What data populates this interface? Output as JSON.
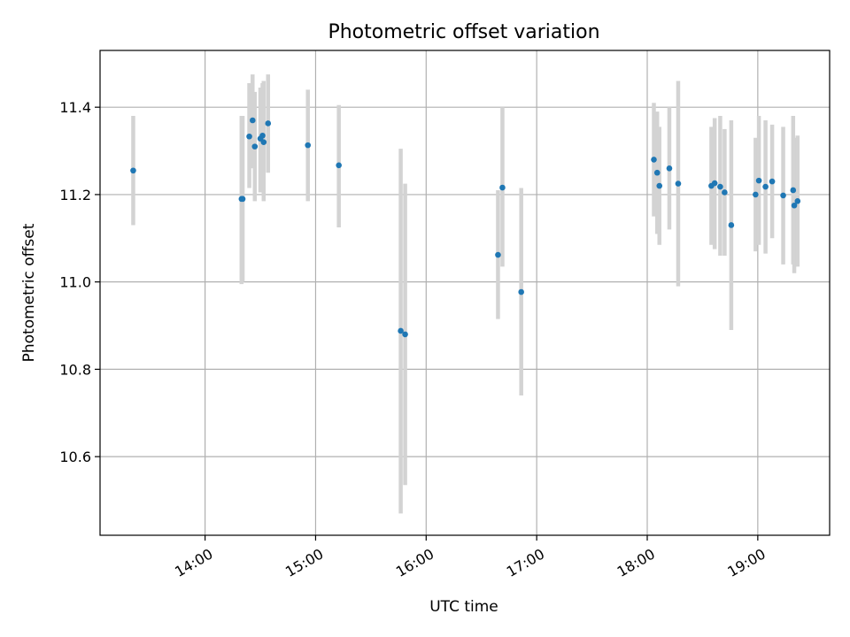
{
  "chart_data": {
    "type": "scatter",
    "title": "Photometric offset variation",
    "xlabel": "UTC time",
    "ylabel": "Photometric offset",
    "x_unit": "hours UTC",
    "xlim": [
      13.05,
      19.65
    ],
    "ylim": [
      10.42,
      11.53
    ],
    "x_ticks": [
      {
        "value": 14,
        "label": "14:00"
      },
      {
        "value": 15,
        "label": "15:00"
      },
      {
        "value": 16,
        "label": "16:00"
      },
      {
        "value": 17,
        "label": "17:00"
      },
      {
        "value": 18,
        "label": "18:00"
      },
      {
        "value": 19,
        "label": "19:00"
      }
    ],
    "y_ticks": [
      {
        "value": 10.6,
        "label": "10.6"
      },
      {
        "value": 10.8,
        "label": "10.8"
      },
      {
        "value": 11.0,
        "label": "11.0"
      },
      {
        "value": 11.2,
        "label": "11.2"
      },
      {
        "value": 11.4,
        "label": "11.4"
      }
    ],
    "grid": true,
    "marker_color": "#1f77b4",
    "errorbar_color": "#d3d3d3",
    "points": [
      {
        "x": 13.35,
        "y": 11.255,
        "lo": 11.13,
        "hi": 11.38
      },
      {
        "x": 14.33,
        "y": 11.19,
        "lo": 10.995,
        "hi": 11.38
      },
      {
        "x": 14.34,
        "y": 11.19,
        "lo": 11.0,
        "hi": 11.38
      },
      {
        "x": 14.4,
        "y": 11.333,
        "lo": 11.215,
        "hi": 11.455
      },
      {
        "x": 14.43,
        "y": 11.37,
        "lo": 11.26,
        "hi": 11.475
      },
      {
        "x": 14.45,
        "y": 11.31,
        "lo": 11.185,
        "hi": 11.435
      },
      {
        "x": 14.5,
        "y": 11.328,
        "lo": 11.205,
        "hi": 11.445
      },
      {
        "x": 14.52,
        "y": 11.335,
        "lo": 11.22,
        "hi": 11.455
      },
      {
        "x": 14.53,
        "y": 11.32,
        "lo": 11.185,
        "hi": 11.46
      },
      {
        "x": 14.57,
        "y": 11.363,
        "lo": 11.25,
        "hi": 11.475
      },
      {
        "x": 14.93,
        "y": 11.313,
        "lo": 11.185,
        "hi": 11.44
      },
      {
        "x": 15.21,
        "y": 11.267,
        "lo": 11.125,
        "hi": 11.405
      },
      {
        "x": 15.77,
        "y": 10.888,
        "lo": 10.47,
        "hi": 11.305
      },
      {
        "x": 15.81,
        "y": 10.88,
        "lo": 10.535,
        "hi": 11.225
      },
      {
        "x": 16.65,
        "y": 11.062,
        "lo": 10.915,
        "hi": 11.21
      },
      {
        "x": 16.69,
        "y": 11.216,
        "lo": 11.035,
        "hi": 11.4
      },
      {
        "x": 16.86,
        "y": 10.977,
        "lo": 10.74,
        "hi": 11.215
      },
      {
        "x": 18.06,
        "y": 11.28,
        "lo": 11.15,
        "hi": 11.41
      },
      {
        "x": 18.09,
        "y": 11.25,
        "lo": 11.11,
        "hi": 11.39
      },
      {
        "x": 18.11,
        "y": 11.22,
        "lo": 11.085,
        "hi": 11.355
      },
      {
        "x": 18.2,
        "y": 11.26,
        "lo": 11.12,
        "hi": 11.4
      },
      {
        "x": 18.28,
        "y": 11.225,
        "lo": 10.99,
        "hi": 11.46
      },
      {
        "x": 18.58,
        "y": 11.22,
        "lo": 11.085,
        "hi": 11.355
      },
      {
        "x": 18.61,
        "y": 11.226,
        "lo": 11.075,
        "hi": 11.375
      },
      {
        "x": 18.66,
        "y": 11.218,
        "lo": 11.06,
        "hi": 11.38
      },
      {
        "x": 18.7,
        "y": 11.205,
        "lo": 11.06,
        "hi": 11.35
      },
      {
        "x": 18.76,
        "y": 11.13,
        "lo": 10.89,
        "hi": 11.37
      },
      {
        "x": 18.98,
        "y": 11.2,
        "lo": 11.07,
        "hi": 11.33
      },
      {
        "x": 19.01,
        "y": 11.232,
        "lo": 11.085,
        "hi": 11.38
      },
      {
        "x": 19.07,
        "y": 11.218,
        "lo": 11.065,
        "hi": 11.37
      },
      {
        "x": 19.13,
        "y": 11.23,
        "lo": 11.1,
        "hi": 11.36
      },
      {
        "x": 19.23,
        "y": 11.198,
        "lo": 11.04,
        "hi": 11.355
      },
      {
        "x": 19.32,
        "y": 11.21,
        "lo": 11.04,
        "hi": 11.38
      },
      {
        "x": 19.33,
        "y": 11.175,
        "lo": 11.02,
        "hi": 11.33
      },
      {
        "x": 19.36,
        "y": 11.185,
        "lo": 11.035,
        "hi": 11.335
      }
    ]
  }
}
